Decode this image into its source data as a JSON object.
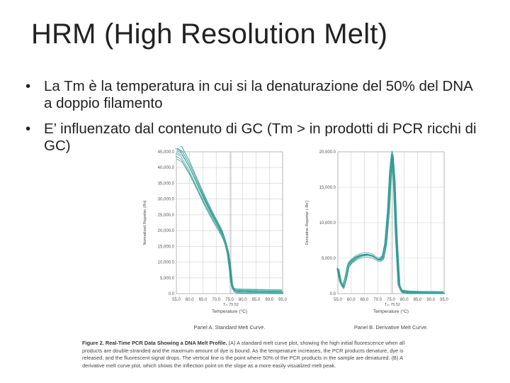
{
  "slide": {
    "title": "HRM (High Resolution Melt)",
    "bullets": [
      "La Tm è la temperatura in cui si la denaturazione del 50% del DNA a doppio filamento",
      "E’ influenzato dal contenuto di GC (Tm > in prodotti di PCR ricchi di GC)"
    ]
  },
  "figure": {
    "caption_title": "Figure 2. Real-Time PCR Data Showing a DNA Melt Profile.",
    "caption_text": "(A) A standard melt curve plot, showing the high initial fluorescence when all products are double-stranded and the maximum amount of dye is bound. As the temperature increases, the PCR products denature, dye is released, and the fluorescent signal drops. The vertical line is the point where 50% of the PCR products in the sample are denatured. (B) A derivative melt curve plot, which shows the inflection point on the slope as a more easily visualized melt peak."
  },
  "chart_data": [
    {
      "type": "line",
      "title": "Panel A. Standard Melt Curve.",
      "xlabel": "Temperature (°C)",
      "ylabel": "Normalized Reporter (Rn)",
      "xlim": [
        55,
        95
      ],
      "ylim": [
        0,
        45000
      ],
      "xticks": [
        "55.0",
        "60.0",
        "65.0",
        "70.0",
        "75.0",
        "80.0",
        "85.0",
        "90.0",
        "95.0"
      ],
      "yticks": [
        "0.0",
        "5,000.0",
        "10,000.0",
        "15,000.0",
        "20,000.0",
        "25,000.0",
        "30,000.0",
        "35,000.0",
        "40,000.0",
        "45,000.0"
      ],
      "marker_label": "Tₘ 75.52",
      "marker_x": 75.52,
      "line_color": "#2f9a92",
      "series_x": [
        55,
        57,
        60,
        63,
        66,
        69,
        71,
        72.5,
        73.5,
        74.5,
        75.2,
        75.8,
        76.5,
        77.5,
        80,
        85,
        90,
        95
      ],
      "series_y": [
        45500,
        44500,
        40000,
        34500,
        29000,
        24000,
        21000,
        18500,
        16000,
        12500,
        8000,
        3000,
        1200,
        800,
        700,
        600,
        500,
        450
      ]
    },
    {
      "type": "line",
      "title": "Panel B. Derivative Melt Curve.",
      "xlabel": "Temperature (°C)",
      "ylabel": "Derivative Reporter (-Rn')",
      "xlim": [
        55,
        95
      ],
      "ylim": [
        0,
        20000
      ],
      "xticks": [
        "55.0",
        "60.0",
        "65.0",
        "70.0",
        "75.0",
        "80.0",
        "85.0",
        "90.0",
        "95.0"
      ],
      "yticks": [
        "0.0",
        "5,000.0",
        "10,000.0",
        "15,000.0",
        "20,000.0"
      ],
      "marker_label": "Tₘ 75.52",
      "marker_x": 75.52,
      "line_color": "#2f9a92",
      "series_x": [
        55,
        56,
        57,
        58,
        59,
        60,
        62,
        64,
        66,
        68,
        70,
        71,
        72,
        73,
        74,
        74.8,
        75.5,
        76.2,
        77,
        78,
        79,
        82,
        86,
        90,
        95
      ],
      "series_y": [
        3500,
        1600,
        900,
        2200,
        4000,
        4500,
        5100,
        5400,
        5500,
        5300,
        4800,
        4800,
        5100,
        7000,
        11500,
        17000,
        19500,
        16000,
        8000,
        1200,
        300,
        150,
        100,
        80,
        60
      ]
    }
  ]
}
